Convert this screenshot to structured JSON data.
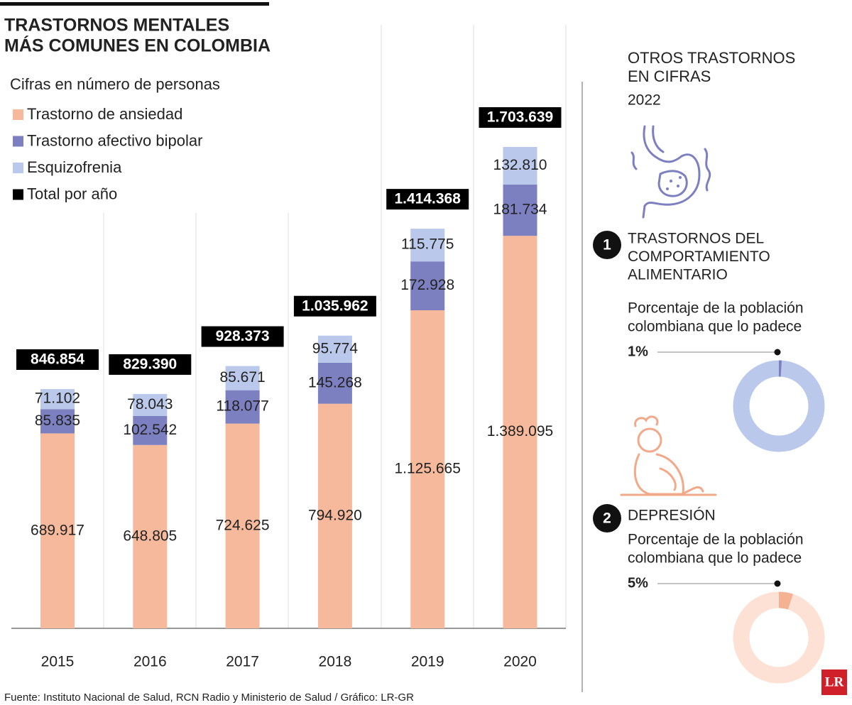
{
  "chart_data": [
    {
      "type": "stacked_bar",
      "title": [
        "TRASTORNOS MENTALES",
        "MÁS COMUNES EN COLOMBIA"
      ],
      "subtitle": "Cifras en número de personas",
      "categories": [
        "2015",
        "2016",
        "2017",
        "2018",
        "2019",
        "2020"
      ],
      "series": [
        {
          "name": "Trastorno de ansiedad",
          "color": "#f7b99b",
          "values": [
            689917,
            648805,
            724625,
            794920,
            1125665,
            1389095
          ],
          "value_labels": [
            "689.917",
            "648.805",
            "724.625",
            "794.920",
            "1.125.665",
            "1.389.095"
          ]
        },
        {
          "name": "Trastorno afectivo bipolar",
          "color": "#7c80c1",
          "values": [
            85835,
            102542,
            118077,
            145268,
            172928,
            181734
          ],
          "value_labels": [
            "85.835",
            "102.542",
            "118.077",
            "145.268",
            "172.928",
            "181.734"
          ]
        },
        {
          "name": "Esquizofrenia",
          "color": "#bac9eb",
          "values": [
            71102,
            78043,
            85671,
            95774,
            115775,
            132810
          ],
          "value_labels": [
            "71.102",
            "78.043",
            "85.671",
            "95.774",
            "115.775",
            "132.810"
          ]
        }
      ],
      "totals": {
        "name": "Total por año",
        "color": "#000000",
        "values": [
          846854,
          829390,
          928373,
          1035962,
          1414368,
          1703639
        ],
        "value_labels": [
          "846.854",
          "829.390",
          "928.373",
          "1.035.962",
          "1.414.368",
          "1.703.639"
        ]
      },
      "source": "Fuente: Instituto Nacional de Salud, RCN Radio y Ministerio de Salud / Gráfico: LR-GR"
    },
    {
      "type": "donut",
      "number": "1",
      "title": [
        "TRASTORNOS DEL",
        "COMPORTAMIENTO",
        "ALIMENTARIO"
      ],
      "subtitle": [
        "Porcentaje de la población",
        "colombiana que lo padece"
      ],
      "values": [
        1
      ],
      "value_labels": [
        "1%"
      ],
      "color": "#7c80c1",
      "ring_color": "#bac9eb"
    },
    {
      "type": "donut",
      "number": "2",
      "title": [
        "DEPRESIÓN"
      ],
      "subtitle": [
        "Porcentaje de la población",
        "colombiana que lo padece"
      ],
      "values": [
        5
      ],
      "value_labels": [
        "5%"
      ],
      "color": "#f5b292",
      "ring_color": "#fce1d4"
    }
  ],
  "sidebar": {
    "title": [
      "OTROS TRASTORNOS",
      "EN CIFRAS"
    ],
    "year": "2022"
  },
  "logo": "LR"
}
